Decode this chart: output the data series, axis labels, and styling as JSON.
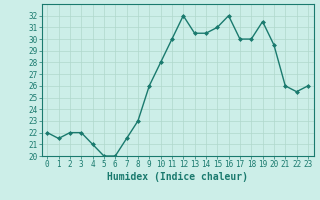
{
  "x": [
    0,
    1,
    2,
    3,
    4,
    5,
    6,
    7,
    8,
    9,
    10,
    11,
    12,
    13,
    14,
    15,
    16,
    17,
    18,
    19,
    20,
    21,
    22,
    23
  ],
  "y": [
    22,
    21.5,
    22,
    22,
    21,
    20,
    20,
    21.5,
    23,
    26,
    28,
    30,
    32,
    30.5,
    30.5,
    31,
    32,
    30,
    30,
    31.5,
    29.5,
    26,
    25.5,
    26
  ],
  "line_color": "#1a7a6e",
  "marker": "D",
  "marker_size": 2,
  "bg_color": "#cceee8",
  "grid_color": "#b0d8cc",
  "xlabel": "Humidex (Indice chaleur)",
  "ylim": [
    20,
    33
  ],
  "xlim": [
    -0.5,
    23.5
  ],
  "yticks": [
    20,
    21,
    22,
    23,
    24,
    25,
    26,
    27,
    28,
    29,
    30,
    31,
    32
  ],
  "xticks": [
    0,
    1,
    2,
    3,
    4,
    5,
    6,
    7,
    8,
    9,
    10,
    11,
    12,
    13,
    14,
    15,
    16,
    17,
    18,
    19,
    20,
    21,
    22,
    23
  ],
  "tick_color": "#1a7a6e",
  "tick_fontsize": 5.5,
  "xlabel_fontsize": 7,
  "line_width": 1.0
}
